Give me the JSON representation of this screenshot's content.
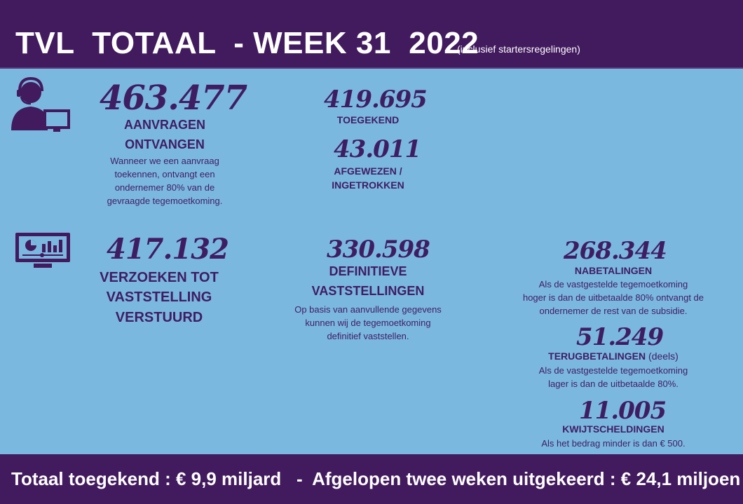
{
  "header": {
    "title": "TVL  TOTAAL  - WEEK 31  2022",
    "note": "(inclusief startersregelingen)"
  },
  "aanvragen": {
    "value": "463.477",
    "label_line1": "AANVRAGEN",
    "label_line2": "ONTVANGEN",
    "desc_lines": [
      "Wanneer we een aanvraag",
      "toekennen, ontvangt een",
      "ondernemer 80% van de",
      "gevraagde tegemoetkoming."
    ]
  },
  "toegekend": {
    "value": "419.695",
    "label": "TOEGEKEND"
  },
  "afgewezen": {
    "value": "43.011",
    "label_line1": "AFGEWEZEN /",
    "label_line2": "INGETROKKEN"
  },
  "verzoeken": {
    "value": "417.132",
    "label_line1": "VERZOEKEN TOT",
    "label_line2": "VASTSTELLING",
    "label_line3": "VERSTUURD"
  },
  "definitieve": {
    "value": "330.598",
    "label_line1": "DEFINITIEVE",
    "label_line2": "VASTSTELLINGEN",
    "desc_lines": [
      "Op basis van aanvullende gegevens",
      "kunnen wij de tegemoetkoming",
      "definitief vaststellen."
    ]
  },
  "nabetalingen": {
    "value": "268.344",
    "label": "NABETALINGEN",
    "desc_lines": [
      "Als de vastgestelde tegemoetkoming",
      "hoger is dan de uitbetaalde 80% ontvangt de",
      "ondernemer de rest van de subsidie."
    ]
  },
  "terugbetalingen": {
    "value": "51.249",
    "label": "TERUGBETALINGEN",
    "label_suffix": "(deels)",
    "desc_lines": [
      "Als de vastgestelde tegemoetkoming",
      "lager is dan de uitbetaalde 80%."
    ]
  },
  "kwijtscheldingen": {
    "value": "11.005",
    "label": "KWIJTSCHELDINGEN",
    "desc_lines": [
      "Als het bedrag minder is dan € 500."
    ]
  },
  "footer": {
    "text": "Totaal toegekend : € 9,9 miljard   -  Afgelopen twee weken uitgekeerd : € 24,1 miljoen"
  },
  "icons": [
    "support-agent-icon",
    "monitor-dashboard-icon"
  ],
  "colors": {
    "header_bg": "#421a5e",
    "body_bg": "#7bb8e0",
    "text": "#3f1d63"
  }
}
